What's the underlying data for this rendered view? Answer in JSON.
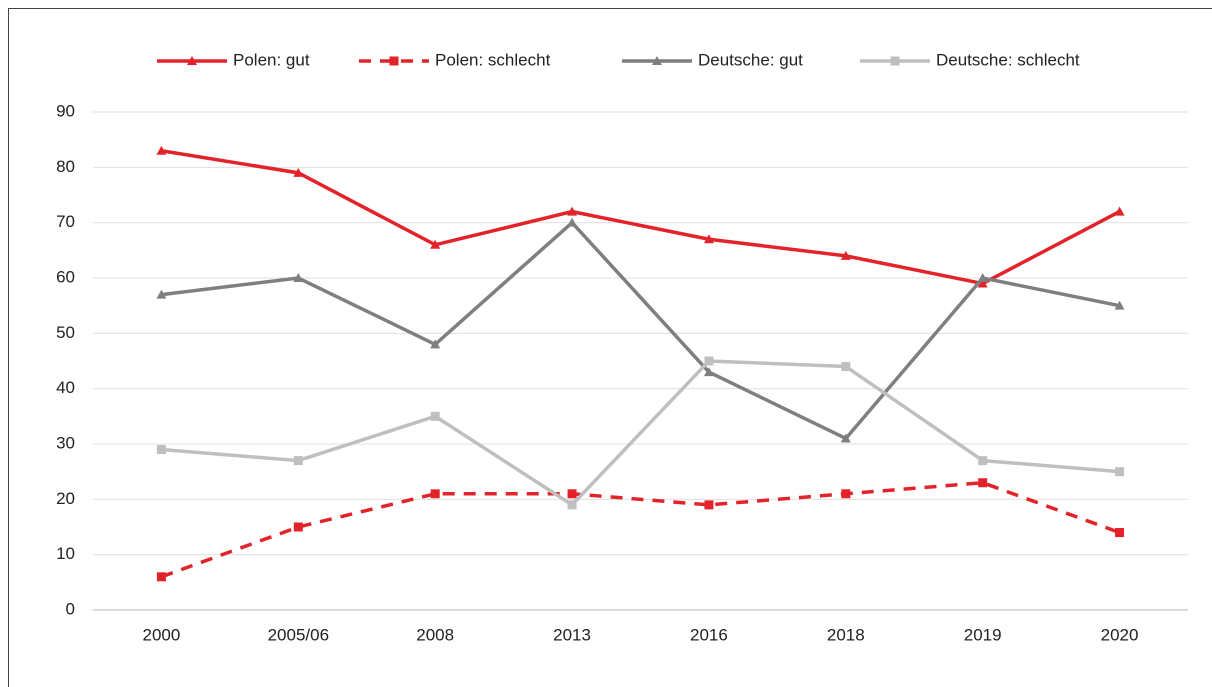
{
  "chart_data": {
    "type": "line",
    "categories": [
      "2000",
      "2005/06",
      "2008",
      "2013",
      "2016",
      "2018",
      "2019",
      "2020"
    ],
    "series": [
      {
        "name": "Polen: gut",
        "color": "#e3232a",
        "marker": "triangle",
        "dashed": false,
        "values": [
          83,
          79,
          66,
          72,
          67,
          64,
          59,
          72
        ]
      },
      {
        "name": "Polen: schlecht",
        "color": "#e3232a",
        "marker": "square",
        "dashed": true,
        "values": [
          6,
          15,
          21,
          21,
          19,
          21,
          23,
          14
        ]
      },
      {
        "name": "Deutsche: gut",
        "color": "#7f7f7f",
        "marker": "triangle",
        "dashed": false,
        "values": [
          57,
          60,
          48,
          70,
          43,
          31,
          60,
          55
        ]
      },
      {
        "name": "Deutsche: schlecht",
        "color": "#bfbfbf",
        "marker": "square",
        "dashed": false,
        "values": [
          29,
          27,
          35,
          19,
          45,
          44,
          27,
          25
        ]
      }
    ],
    "ylim": [
      0,
      90
    ],
    "yticks": [
      0,
      10,
      20,
      30,
      40,
      50,
      60,
      70,
      80,
      90
    ],
    "grid": true,
    "legend": "top"
  }
}
